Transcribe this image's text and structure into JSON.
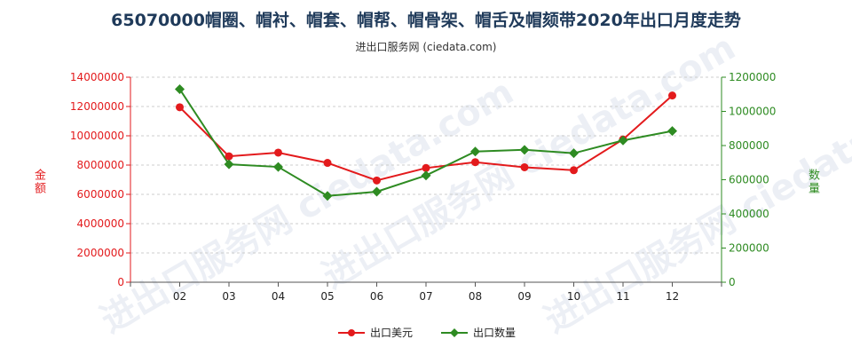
{
  "title": "65070000帽圈、帽衬、帽套、帽帮、帽骨架、帽舌及帽颏带2020年出口月度走势",
  "subtitle": "进出口服务网 (ciedata.com)",
  "watermark": "进出口服务网 ciedata.com",
  "colors": {
    "left": "#e31a1c",
    "right": "#2e8b22",
    "grid": "#cccccc"
  },
  "chart_data": {
    "type": "line",
    "categories": [
      "02",
      "03",
      "04",
      "05",
      "06",
      "07",
      "08",
      "09",
      "10",
      "11",
      "12"
    ],
    "ylabel_left": "金额",
    "ylabel_right": "数量",
    "ylim_left": [
      0,
      14000000
    ],
    "ylim_right": [
      0,
      1200000
    ],
    "yticks_left": [
      "0",
      "2000000",
      "4000000",
      "6000000",
      "8000000",
      "10000000",
      "12000000",
      "14000000"
    ],
    "yticks_right": [
      "0",
      "200000",
      "400000",
      "600000",
      "800000",
      "1000000",
      "1200000"
    ],
    "grid": true,
    "legend_position": "bottom",
    "series": [
      {
        "name": "出口美元",
        "axis": "left",
        "marker": "circle",
        "values": [
          11950000,
          8600000,
          8850000,
          8150000,
          6950000,
          7800000,
          8200000,
          7850000,
          7650000,
          9750000,
          12750000
        ]
      },
      {
        "name": "出口数量",
        "axis": "right",
        "marker": "diamond",
        "values": [
          1130000,
          690000,
          675000,
          505000,
          530000,
          625000,
          765000,
          775000,
          755000,
          830000,
          885000
        ]
      }
    ]
  }
}
